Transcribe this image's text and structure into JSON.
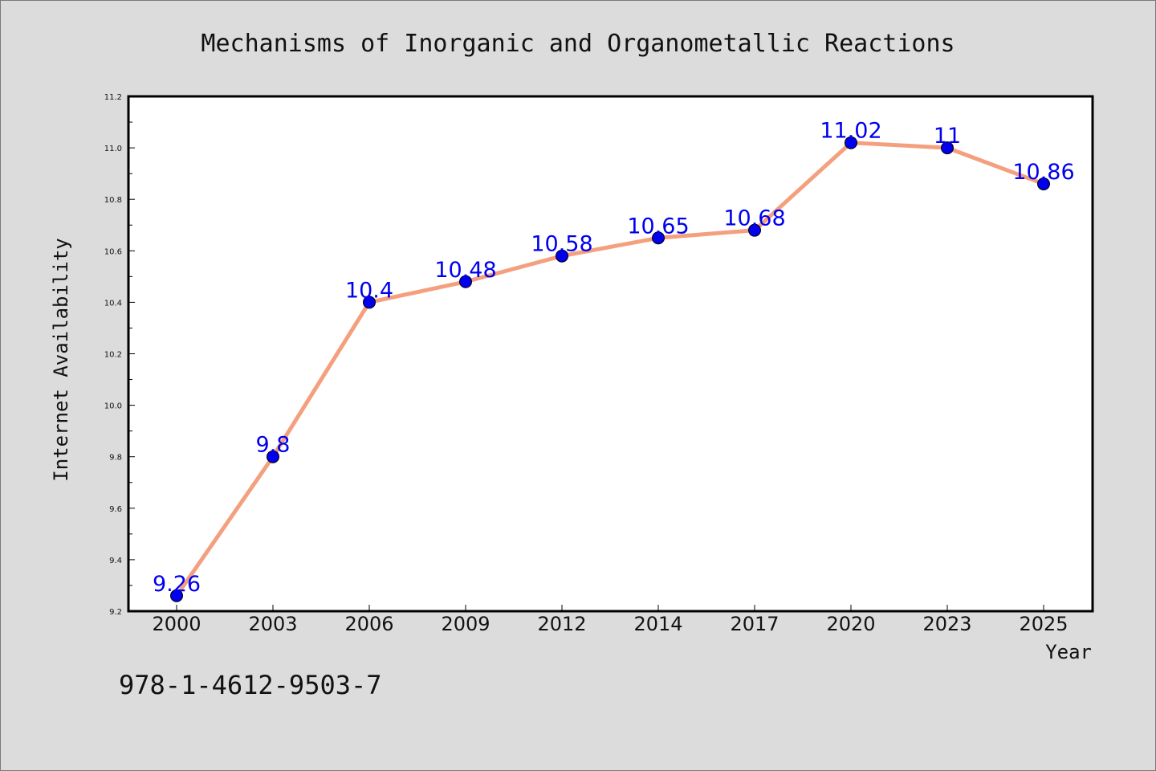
{
  "chart_data": {
    "type": "line",
    "title": "Mechanisms of Inorganic and Organometallic Reactions",
    "xlabel": "Year",
    "ylabel": "Internet Availability",
    "categories": [
      "2000",
      "2003",
      "2006",
      "2009",
      "2012",
      "2014",
      "2017",
      "2020",
      "2023",
      "2025"
    ],
    "series": [
      {
        "values": [
          9.26,
          9.8,
          10.4,
          10.48,
          10.58,
          10.65,
          10.68,
          11.02,
          11,
          10.86
        ],
        "labels": [
          "9.26",
          "9.8",
          "10.4",
          "10.48",
          "10.58",
          "10.65",
          "10.68",
          "11.02",
          "11",
          "10.86"
        ]
      }
    ],
    "ylim": [
      9.2,
      11.2
    ],
    "yticks": [
      9.2,
      9.4,
      9.6,
      9.8,
      10.0,
      10.2,
      10.4,
      10.6,
      10.8,
      11.0,
      11.2
    ],
    "ytick_labels": [
      "9.2",
      "9.4",
      "9.6",
      "9.8",
      "10.0",
      "10.2",
      "10.4",
      "10.6",
      "10.8",
      "11.0",
      "11.2"
    ],
    "grid": false,
    "colors": {
      "line": "#f4a07e",
      "marker": "#0000ee",
      "marker_edge": "#000000",
      "data_label": "#0000ee",
      "background": "#dcdcdc",
      "plot_background": "#ffffff"
    }
  },
  "footer": {
    "isbn": "978-1-4612-9503-7"
  }
}
